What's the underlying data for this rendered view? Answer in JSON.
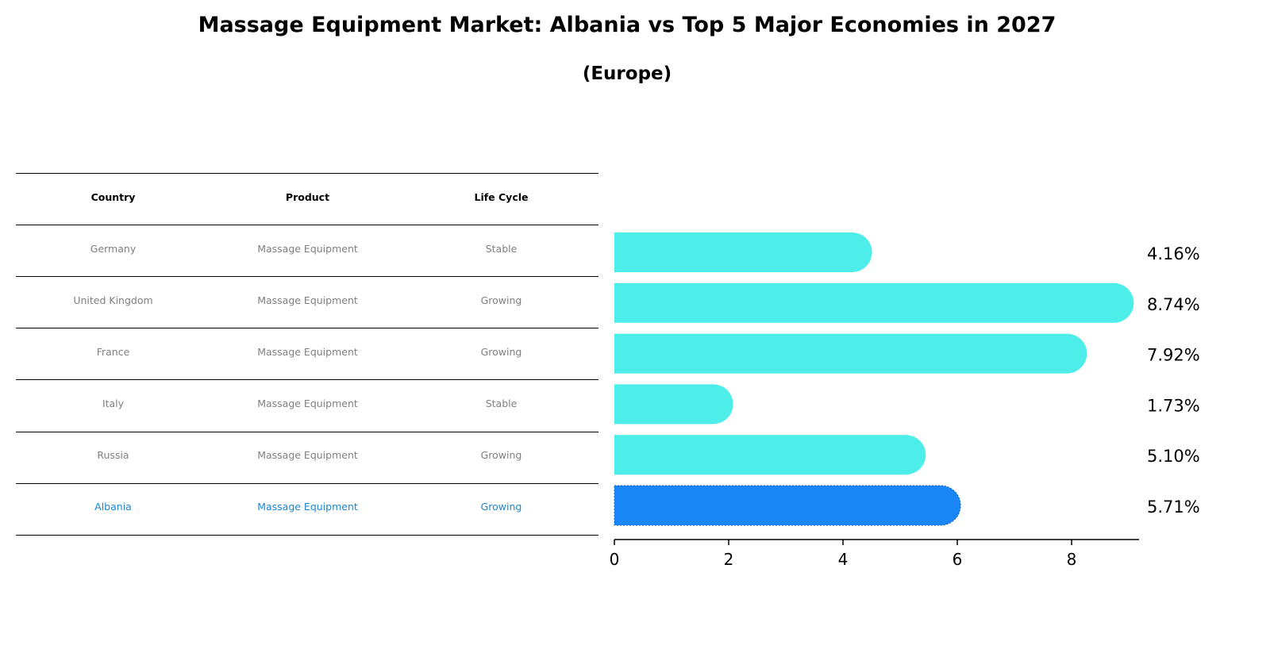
{
  "title": "Massage Equipment Market: Albania vs Top 5 Major Economies in 2027",
  "subtitle": "(Europe)",
  "table": {
    "headers": [
      "Country",
      "Product",
      "Life Cycle"
    ],
    "rows": [
      [
        "Germany",
        "Massage Equipment",
        "Stable"
      ],
      [
        "United Kingdom",
        "Massage Equipment",
        "Growing"
      ],
      [
        "France",
        "Massage Equipment",
        "Growing"
      ],
      [
        "Italy",
        "Massage Equipment",
        "Stable"
      ],
      [
        "Russia",
        "Massage Equipment",
        "Growing"
      ],
      [
        "Albania",
        "Massage Equipment",
        "Growing"
      ]
    ],
    "highlight_row": 5
  },
  "chart_data": {
    "type": "bar",
    "orientation": "horizontal",
    "categories": [
      "Germany",
      "United Kingdom",
      "France",
      "Italy",
      "Russia",
      "Albania"
    ],
    "values": [
      4.16,
      8.74,
      7.92,
      1.73,
      5.1,
      5.71
    ],
    "labels": [
      "4.16%",
      "8.74%",
      "7.92%",
      "1.73%",
      "5.10%",
      "5.71%"
    ],
    "xlim": [
      0,
      9.18
    ],
    "xticks": [
      0,
      2,
      4,
      6,
      8
    ],
    "colors": {
      "default": "#4deeea",
      "highlight": "#1a85f5"
    },
    "highlight_index": 5,
    "grid": false
  }
}
